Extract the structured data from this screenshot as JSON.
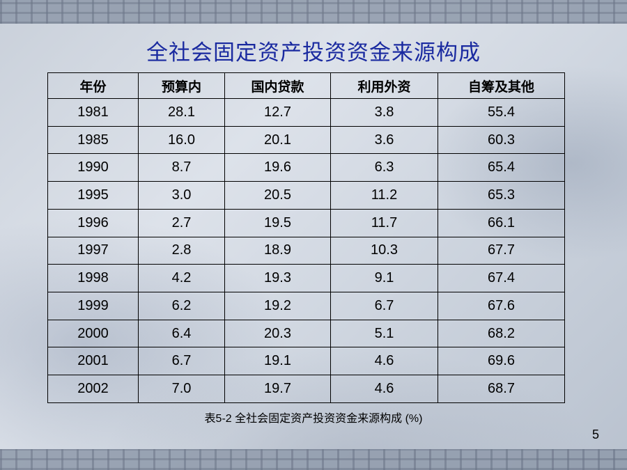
{
  "slide": {
    "title": "全社会固定资产投资资金来源构成",
    "caption": "表5-2  全社会固定资产投资资金来源构成 (%)",
    "page_number": "5"
  },
  "table": {
    "headers": [
      "年份",
      "预算内",
      "国内贷款",
      "利用外资",
      "自筹及其他"
    ],
    "rows": [
      [
        "1981",
        "28.1",
        "12.7",
        "3.8",
        "55.4"
      ],
      [
        "1985",
        "16.0",
        "20.1",
        "3.6",
        "60.3"
      ],
      [
        "1990",
        "8.7",
        "19.6",
        "6.3",
        "65.4"
      ],
      [
        "1995",
        "3.0",
        "20.5",
        "11.2",
        "65.3"
      ],
      [
        "1996",
        "2.7",
        "19.5",
        "11.7",
        "66.1"
      ],
      [
        "1997",
        "2.8",
        "18.9",
        "10.3",
        "67.7"
      ],
      [
        "1998",
        "4.2",
        "19.3",
        "9.1",
        "67.4"
      ],
      [
        "1999",
        "6.2",
        "19.2",
        "6.7",
        "67.6"
      ],
      [
        "2000",
        "6.4",
        "20.3",
        "5.1",
        "68.2"
      ],
      [
        "2001",
        "6.7",
        "19.1",
        "4.6",
        "69.6"
      ],
      [
        "2002",
        "7.0",
        "19.7",
        "4.6",
        "68.7"
      ]
    ]
  },
  "colors": {
    "title": "#1a2aa0",
    "text": "#000000"
  }
}
